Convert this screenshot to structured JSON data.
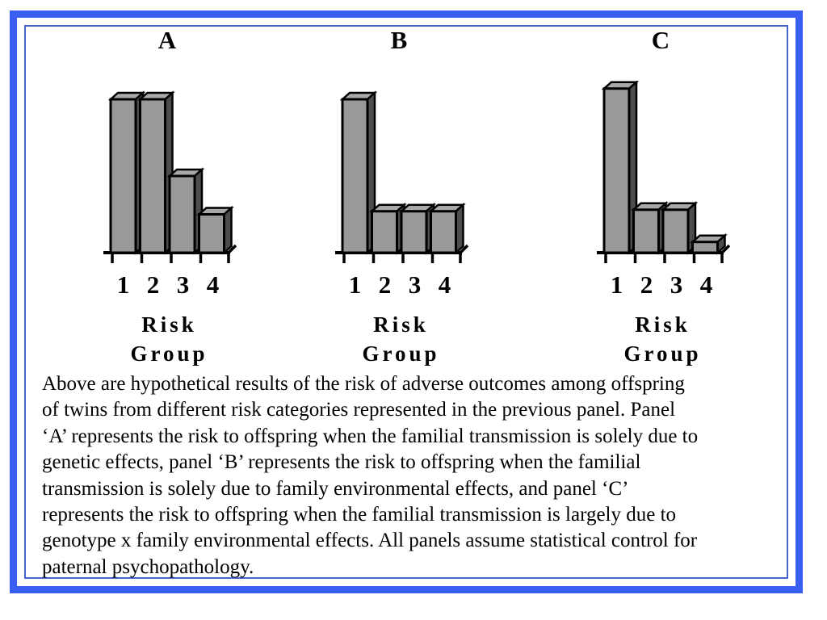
{
  "colors": {
    "background": "#ffffff",
    "frame_thick_blue": "#3a5ef2",
    "frame_thin_blue": "#4466cc",
    "bar_front": "#999999",
    "bar_top": "#a8a8a8",
    "bar_side": "#4d4d4d",
    "outline": "#000000",
    "text": "#000000"
  },
  "chart_data": [
    {
      "type": "bar",
      "title": "A",
      "categories": [
        "1",
        "2",
        "3",
        "4"
      ],
      "values": [
        1.0,
        1.0,
        0.5,
        0.25
      ],
      "xlabel": "Risk Group",
      "xlabel_lines": [
        "Risk",
        "Group"
      ],
      "ylabel": "",
      "ylim": [
        0,
        1.1
      ],
      "y_axis_shown": false,
      "grid": false,
      "legend": "none",
      "bar_style": "3d-gray"
    },
    {
      "type": "bar",
      "title": "B",
      "categories": [
        "1",
        "2",
        "3",
        "4"
      ],
      "values": [
        1.0,
        0.27,
        0.27,
        0.27
      ],
      "xlabel": "Risk Group",
      "xlabel_lines": [
        "Risk",
        "Group"
      ],
      "ylabel": "",
      "ylim": [
        0,
        1.1
      ],
      "y_axis_shown": false,
      "grid": false,
      "legend": "none",
      "bar_style": "3d-gray"
    },
    {
      "type": "bar",
      "title": "C",
      "categories": [
        "1",
        "2",
        "3",
        "4"
      ],
      "values": [
        1.07,
        0.28,
        0.28,
        0.07
      ],
      "xlabel": "Risk Group",
      "xlabel_lines": [
        "Risk",
        "Group"
      ],
      "ylabel": "",
      "ylim": [
        0,
        1.1
      ],
      "y_axis_shown": false,
      "grid": false,
      "legend": "none",
      "bar_style": "3d-gray"
    }
  ],
  "caption": {
    "lines": [
      "Above are hypothetical results of the risk of adverse outcomes among offspring",
      "of twins from different risk categories represented in the previous panel.  Panel",
      "‘A’ represents the risk to offspring when the familial transmission is solely due to",
      "genetic effects, panel ‘B’ represents the risk to offspring when the familial",
      "transmission is solely due to family environmental effects, and panel ‘C’",
      "represents the risk to offspring when the familial transmission is largely due to",
      "genotype x family environmental effects. All panels assume statistical control for",
      "paternal psychopathology."
    ],
    "full_text": "Above are hypothetical results of the risk of adverse outcomes among offspring of twins from different risk categories represented in the previous panel.  Panel ‘A’ represents the risk to offspring when the familial transmission is solely due to genetic effects, panel ‘B’ represents the risk to offspring when the familial transmission is solely due to family environmental effects, and panel ‘C’ represents the risk to offspring when the familial transmission is largely due to genotype x family environmental effects. All panels assume statistical control for paternal psychopathology."
  }
}
